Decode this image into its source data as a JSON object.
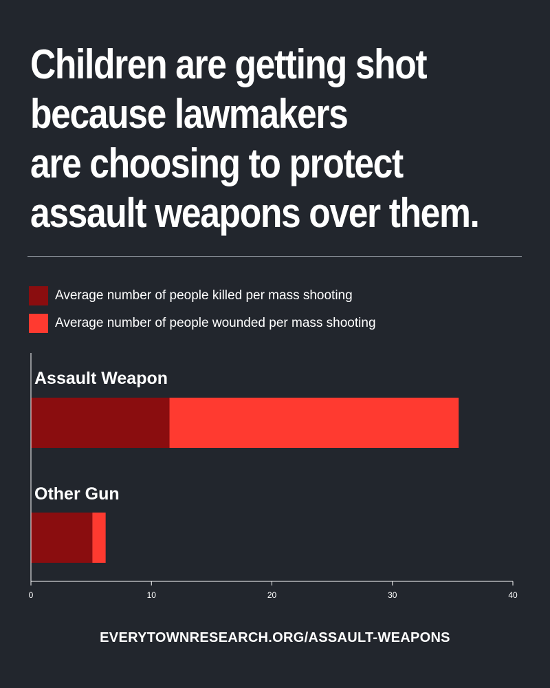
{
  "headline": {
    "lines": [
      "Children are getting shot",
      "because lawmakers",
      "are choosing to protect",
      "assault weapons over them."
    ]
  },
  "footer": {
    "source": "EVERYTOWNRESEARCH.ORG/ASSAULT-WEAPONS"
  },
  "chart_data": {
    "type": "bar",
    "orientation": "horizontal",
    "stacked": true,
    "categories": [
      "Assault Weapon",
      "Other Gun"
    ],
    "series": [
      {
        "name": "Average number of people killed per mass shooting",
        "values": [
          11.5,
          5.1
        ],
        "color": "#8a0d0f"
      },
      {
        "name": "Average number of people wounded per mass shooting",
        "values": [
          24.0,
          1.1
        ],
        "color": "#ff3a30"
      }
    ],
    "xlim": [
      0,
      40
    ],
    "xticks": [
      "0",
      "10",
      "20",
      "30",
      "40"
    ],
    "xlabel": "",
    "ylabel": "",
    "grid": false,
    "legend_position": "top-left"
  }
}
